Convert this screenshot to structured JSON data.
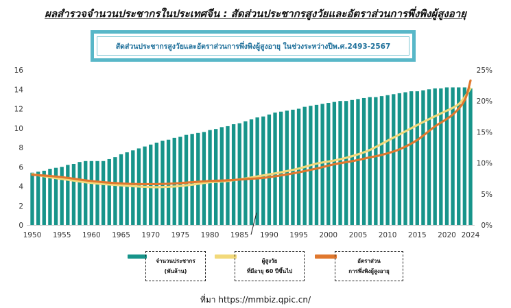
{
  "header": {
    "title": "ผลสำรวจจำนวนประชากรในประเทศจีน : สัดส่วนประชากรสูงวัยและอัตราส่วนการพึ่งพิงผู้สูงอายุ",
    "banner": "สัดส่วนประชากรสูงวัยและอัตราส่วนการพึ่งพิงผู้สูงอายุ ในช่วงระหว่างปีพ.ศ.2493-2567"
  },
  "legend": {
    "population_line1": "จำนวนประชากร",
    "population_line2": "(พันล้าน)",
    "elderly_line1": "ผู้สูงวัย",
    "elderly_line2": "ที่มีอายุ 60 ปีขึ้นไป",
    "dependency_line1": "อัตราส่วน",
    "dependency_line2": "การพึ่งพิงผู้สูงอายุ"
  },
  "source": "ที่มา https://mmbiz.qpic.cn/",
  "colors": {
    "bars": "#17948a",
    "elderly": "#f2d97a",
    "dependency": "#e0782e",
    "banner_border": "#58b7c8",
    "banner_text": "#1d6f9a"
  },
  "chart_data": {
    "type": "bar",
    "x_start": 1950,
    "x_end": 2024,
    "x_ticks": [
      "1950",
      "1955",
      "1960",
      "1965",
      "1970",
      "1975",
      "1980",
      "1985",
      "1990",
      "1995",
      "2000",
      "2005",
      "2010",
      "2015",
      "2020",
      "2024"
    ],
    "y_left_ticks": [
      "0",
      "2",
      "4",
      "6",
      "8",
      "10",
      "12",
      "14",
      "16"
    ],
    "y_right_ticks": [
      "0%",
      "5%",
      "10%",
      "15%",
      "20%",
      "25%"
    ],
    "ylim_left": [
      0,
      16
    ],
    "ylim_right": [
      0,
      25
    ],
    "grid": false,
    "series": [
      {
        "name": "จำนวนประชากร (พันล้าน)",
        "type": "bar",
        "axis": "left",
        "values": [
          5.4,
          5.5,
          5.6,
          5.8,
          5.9,
          6.0,
          6.2,
          6.3,
          6.5,
          6.6,
          6.6,
          6.6,
          6.6,
          6.8,
          7.0,
          7.3,
          7.5,
          7.7,
          7.9,
          8.1,
          8.3,
          8.5,
          8.7,
          8.8,
          9.0,
          9.1,
          9.3,
          9.4,
          9.5,
          9.6,
          9.8,
          9.9,
          10.1,
          10.2,
          10.4,
          10.5,
          10.7,
          10.9,
          11.1,
          11.2,
          11.4,
          11.6,
          11.7,
          11.8,
          11.9,
          12.0,
          12.2,
          12.3,
          12.4,
          12.5,
          12.6,
          12.7,
          12.8,
          12.8,
          12.9,
          13.0,
          13.1,
          13.2,
          13.2,
          13.3,
          13.4,
          13.5,
          13.6,
          13.7,
          13.8,
          13.8,
          13.9,
          14.0,
          14.1,
          14.1,
          14.2,
          14.2,
          14.2,
          14.2,
          14.1
        ]
      },
      {
        "name": "ผู้สูงวัย ที่มีอายุ 60 ปีขึ้นไป",
        "type": "line",
        "axis": "right",
        "values": [
          8.2,
          7.7,
          7.3,
          6.9,
          6.6,
          6.4,
          6.2,
          6.1,
          6.2,
          6.5,
          6.9,
          7.1,
          7.5,
          8.0,
          8.5,
          9.1,
          9.9,
          10.4,
          11.1,
          12.1,
          13.6,
          15.1,
          16.6,
          18.0,
          19.5,
          22.0
        ]
      },
      {
        "name": "อัตราส่วน การพึ่งพิงผู้สูงอายุ",
        "type": "line",
        "axis": "right",
        "values": [
          8.1,
          7.9,
          7.6,
          7.2,
          6.9,
          6.7,
          6.6,
          6.6,
          6.7,
          6.9,
          7.1,
          7.2,
          7.4,
          7.6,
          8.0,
          8.5,
          9.1,
          9.8,
          10.3,
          10.9,
          11.3,
          12.2,
          13.7,
          15.9,
          17.8,
          20.1,
          23.3
        ]
      }
    ],
    "line_x": {
      "elderly": [
        1950,
        1953,
        1956,
        1959,
        1962,
        1965,
        1968,
        1971,
        1974,
        1977,
        1980,
        1983,
        1986,
        1989,
        1992,
        1995,
        1998,
        2001,
        2004,
        2007,
        2010,
        2013,
        2016,
        2019,
        2022,
        2024
      ],
      "dependency": [
        1950,
        1953,
        1956,
        1959,
        1962,
        1965,
        1968,
        1971,
        1974,
        1977,
        1980,
        1983,
        1986,
        1989,
        1992,
        1995,
        1998,
        2001,
        2004,
        2007,
        2009,
        2012,
        2015,
        2018,
        2021,
        2023,
        2024
      ]
    }
  }
}
